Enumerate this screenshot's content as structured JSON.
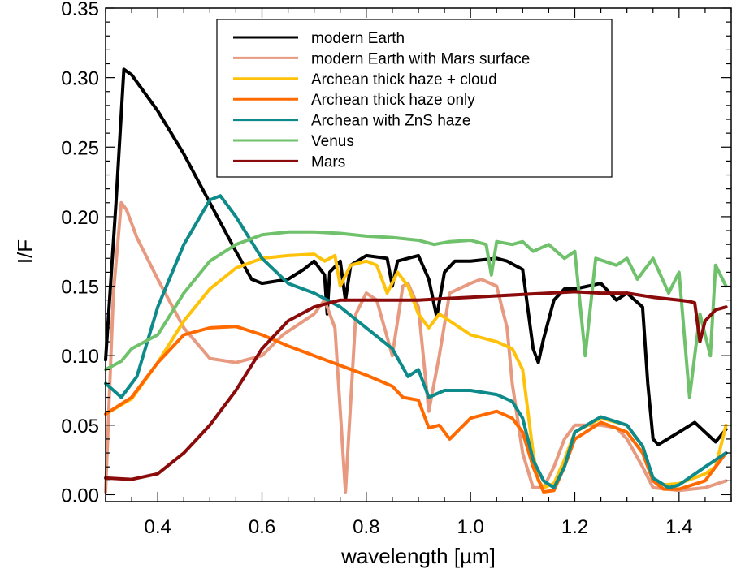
{
  "chart_data": {
    "type": "line",
    "title": "",
    "xlabel": "wavelength [µm]",
    "ylabel": "I/F",
    "xlim": [
      0.3,
      1.5
    ],
    "ylim": [
      -0.005,
      0.35
    ],
    "x_ticks": [
      0.4,
      0.6,
      0.8,
      1.0,
      1.2,
      1.4
    ],
    "x_tick_labels": [
      "0.4",
      "0.6",
      "0.8",
      "1.0",
      "1.2",
      "1.4"
    ],
    "y_ticks": [
      0.0,
      0.05,
      0.1,
      0.15,
      0.2,
      0.25,
      0.3,
      0.35
    ],
    "y_tick_labels": [
      "0.00",
      "0.05",
      "0.10",
      "0.15",
      "0.20",
      "0.25",
      "0.30",
      "0.35"
    ],
    "grid": false,
    "legend_position": "top-right",
    "series": [
      {
        "name": "modern Earth",
        "color": "#000000",
        "points": [
          [
            0.3,
            0.097
          ],
          [
            0.32,
            0.21
          ],
          [
            0.335,
            0.306
          ],
          [
            0.35,
            0.302
          ],
          [
            0.4,
            0.276
          ],
          [
            0.45,
            0.245
          ],
          [
            0.5,
            0.21
          ],
          [
            0.55,
            0.175
          ],
          [
            0.58,
            0.155
          ],
          [
            0.6,
            0.152
          ],
          [
            0.65,
            0.155
          ],
          [
            0.68,
            0.162
          ],
          [
            0.7,
            0.168
          ],
          [
            0.72,
            0.158
          ],
          [
            0.725,
            0.13
          ],
          [
            0.73,
            0.16
          ],
          [
            0.75,
            0.168
          ],
          [
            0.76,
            0.14
          ],
          [
            0.77,
            0.165
          ],
          [
            0.8,
            0.172
          ],
          [
            0.84,
            0.17
          ],
          [
            0.85,
            0.15
          ],
          [
            0.86,
            0.168
          ],
          [
            0.9,
            0.172
          ],
          [
            0.92,
            0.155
          ],
          [
            0.935,
            0.128
          ],
          [
            0.95,
            0.16
          ],
          [
            0.97,
            0.168
          ],
          [
            1.0,
            0.168
          ],
          [
            1.05,
            0.17
          ],
          [
            1.07,
            0.168
          ],
          [
            1.1,
            0.162
          ],
          [
            1.12,
            0.105
          ],
          [
            1.13,
            0.095
          ],
          [
            1.14,
            0.112
          ],
          [
            1.16,
            0.14
          ],
          [
            1.18,
            0.148
          ],
          [
            1.2,
            0.148
          ],
          [
            1.25,
            0.152
          ],
          [
            1.28,
            0.14
          ],
          [
            1.3,
            0.145
          ],
          [
            1.33,
            0.135
          ],
          [
            1.34,
            0.08
          ],
          [
            1.35,
            0.04
          ],
          [
            1.36,
            0.036
          ],
          [
            1.4,
            0.045
          ],
          [
            1.43,
            0.052
          ],
          [
            1.45,
            0.045
          ],
          [
            1.47,
            0.038
          ],
          [
            1.49,
            0.047
          ]
        ]
      },
      {
        "name": "modern Earth with Mars surface",
        "color": "#e89a80",
        "points": [
          [
            0.3,
            0.002
          ],
          [
            0.315,
            0.145
          ],
          [
            0.33,
            0.21
          ],
          [
            0.34,
            0.205
          ],
          [
            0.36,
            0.185
          ],
          [
            0.4,
            0.155
          ],
          [
            0.45,
            0.12
          ],
          [
            0.5,
            0.098
          ],
          [
            0.55,
            0.095
          ],
          [
            0.6,
            0.1
          ],
          [
            0.64,
            0.115
          ],
          [
            0.68,
            0.125
          ],
          [
            0.7,
            0.13
          ],
          [
            0.72,
            0.14
          ],
          [
            0.74,
            0.12
          ],
          [
            0.76,
            0.002
          ],
          [
            0.78,
            0.13
          ],
          [
            0.8,
            0.145
          ],
          [
            0.82,
            0.14
          ],
          [
            0.85,
            0.1
          ],
          [
            0.87,
            0.15
          ],
          [
            0.88,
            0.152
          ],
          [
            0.9,
            0.135
          ],
          [
            0.92,
            0.06
          ],
          [
            0.94,
            0.1
          ],
          [
            0.96,
            0.145
          ],
          [
            1.0,
            0.152
          ],
          [
            1.02,
            0.155
          ],
          [
            1.05,
            0.15
          ],
          [
            1.07,
            0.12
          ],
          [
            1.08,
            0.08
          ],
          [
            1.1,
            0.03
          ],
          [
            1.12,
            0.005
          ],
          [
            1.14,
            0.005
          ],
          [
            1.16,
            0.02
          ],
          [
            1.18,
            0.04
          ],
          [
            1.2,
            0.05
          ],
          [
            1.25,
            0.05
          ],
          [
            1.28,
            0.048
          ],
          [
            1.3,
            0.04
          ],
          [
            1.33,
            0.02
          ],
          [
            1.35,
            0.005
          ],
          [
            1.4,
            0.003
          ],
          [
            1.45,
            0.005
          ],
          [
            1.49,
            0.01
          ]
        ]
      },
      {
        "name": "Archean thick haze + cloud",
        "color": "#ffc20a",
        "points": [
          [
            0.3,
            0.058
          ],
          [
            0.35,
            0.069
          ],
          [
            0.4,
            0.095
          ],
          [
            0.45,
            0.125
          ],
          [
            0.5,
            0.148
          ],
          [
            0.55,
            0.163
          ],
          [
            0.6,
            0.17
          ],
          [
            0.65,
            0.172
          ],
          [
            0.7,
            0.173
          ],
          [
            0.72,
            0.168
          ],
          [
            0.74,
            0.172
          ],
          [
            0.75,
            0.15
          ],
          [
            0.77,
            0.165
          ],
          [
            0.8,
            0.168
          ],
          [
            0.82,
            0.165
          ],
          [
            0.84,
            0.145
          ],
          [
            0.86,
            0.16
          ],
          [
            0.88,
            0.15
          ],
          [
            0.9,
            0.13
          ],
          [
            0.92,
            0.12
          ],
          [
            0.94,
            0.13
          ],
          [
            0.96,
            0.125
          ],
          [
            1.0,
            0.115
          ],
          [
            1.05,
            0.11
          ],
          [
            1.08,
            0.105
          ],
          [
            1.1,
            0.09
          ],
          [
            1.12,
            0.03
          ],
          [
            1.13,
            0.01
          ],
          [
            1.14,
            0.005
          ],
          [
            1.16,
            0.008
          ],
          [
            1.18,
            0.025
          ],
          [
            1.2,
            0.045
          ],
          [
            1.25,
            0.055
          ],
          [
            1.3,
            0.05
          ],
          [
            1.33,
            0.035
          ],
          [
            1.35,
            0.01
          ],
          [
            1.37,
            0.007
          ],
          [
            1.4,
            0.008
          ],
          [
            1.45,
            0.015
          ],
          [
            1.47,
            0.02
          ],
          [
            1.49,
            0.05
          ]
        ]
      },
      {
        "name": "Archean thick haze only",
        "color": "#ff6a00",
        "points": [
          [
            0.3,
            0.058
          ],
          [
            0.35,
            0.07
          ],
          [
            0.4,
            0.095
          ],
          [
            0.45,
            0.115
          ],
          [
            0.5,
            0.12
          ],
          [
            0.55,
            0.121
          ],
          [
            0.6,
            0.115
          ],
          [
            0.65,
            0.107
          ],
          [
            0.7,
            0.1
          ],
          [
            0.75,
            0.093
          ],
          [
            0.8,
            0.086
          ],
          [
            0.85,
            0.078
          ],
          [
            0.87,
            0.07
          ],
          [
            0.9,
            0.068
          ],
          [
            0.92,
            0.048
          ],
          [
            0.94,
            0.05
          ],
          [
            0.96,
            0.04
          ],
          [
            1.0,
            0.055
          ],
          [
            1.05,
            0.06
          ],
          [
            1.08,
            0.055
          ],
          [
            1.1,
            0.045
          ],
          [
            1.12,
            0.02
          ],
          [
            1.14,
            0.002
          ],
          [
            1.16,
            0.003
          ],
          [
            1.18,
            0.02
          ],
          [
            1.2,
            0.04
          ],
          [
            1.25,
            0.052
          ],
          [
            1.3,
            0.045
          ],
          [
            1.33,
            0.03
          ],
          [
            1.35,
            0.01
          ],
          [
            1.37,
            0.004
          ],
          [
            1.4,
            0.004
          ],
          [
            1.45,
            0.01
          ],
          [
            1.49,
            0.03
          ]
        ]
      },
      {
        "name": "Archean with ZnS haze",
        "color": "#0e8a8a",
        "points": [
          [
            0.3,
            0.08
          ],
          [
            0.33,
            0.07
          ],
          [
            0.36,
            0.085
          ],
          [
            0.4,
            0.135
          ],
          [
            0.45,
            0.18
          ],
          [
            0.5,
            0.212
          ],
          [
            0.52,
            0.215
          ],
          [
            0.55,
            0.2
          ],
          [
            0.6,
            0.17
          ],
          [
            0.65,
            0.152
          ],
          [
            0.7,
            0.145
          ],
          [
            0.75,
            0.135
          ],
          [
            0.8,
            0.12
          ],
          [
            0.85,
            0.105
          ],
          [
            0.88,
            0.085
          ],
          [
            0.9,
            0.09
          ],
          [
            0.92,
            0.07
          ],
          [
            0.95,
            0.075
          ],
          [
            1.0,
            0.075
          ],
          [
            1.05,
            0.072
          ],
          [
            1.08,
            0.067
          ],
          [
            1.1,
            0.055
          ],
          [
            1.12,
            0.025
          ],
          [
            1.14,
            0.01
          ],
          [
            1.16,
            0.005
          ],
          [
            1.18,
            0.02
          ],
          [
            1.2,
            0.045
          ],
          [
            1.25,
            0.056
          ],
          [
            1.3,
            0.05
          ],
          [
            1.33,
            0.035
          ],
          [
            1.35,
            0.012
          ],
          [
            1.38,
            0.005
          ],
          [
            1.4,
            0.007
          ],
          [
            1.45,
            0.02
          ],
          [
            1.49,
            0.03
          ]
        ]
      },
      {
        "name": "Venus",
        "color": "#6fc16b",
        "points": [
          [
            0.3,
            0.09
          ],
          [
            0.33,
            0.096
          ],
          [
            0.35,
            0.105
          ],
          [
            0.4,
            0.115
          ],
          [
            0.45,
            0.145
          ],
          [
            0.5,
            0.168
          ],
          [
            0.55,
            0.18
          ],
          [
            0.6,
            0.187
          ],
          [
            0.65,
            0.189
          ],
          [
            0.7,
            0.189
          ],
          [
            0.75,
            0.188
          ],
          [
            0.8,
            0.186
          ],
          [
            0.85,
            0.185
          ],
          [
            0.9,
            0.183
          ],
          [
            0.93,
            0.18
          ],
          [
            0.96,
            0.182
          ],
          [
            1.0,
            0.183
          ],
          [
            1.03,
            0.18
          ],
          [
            1.04,
            0.158
          ],
          [
            1.05,
            0.182
          ],
          [
            1.08,
            0.18
          ],
          [
            1.1,
            0.182
          ],
          [
            1.12,
            0.175
          ],
          [
            1.15,
            0.18
          ],
          [
            1.18,
            0.17
          ],
          [
            1.2,
            0.175
          ],
          [
            1.22,
            0.1
          ],
          [
            1.24,
            0.17
          ],
          [
            1.28,
            0.165
          ],
          [
            1.3,
            0.17
          ],
          [
            1.32,
            0.155
          ],
          [
            1.35,
            0.17
          ],
          [
            1.38,
            0.145
          ],
          [
            1.4,
            0.16
          ],
          [
            1.42,
            0.07
          ],
          [
            1.44,
            0.13
          ],
          [
            1.46,
            0.1
          ],
          [
            1.47,
            0.165
          ],
          [
            1.49,
            0.15
          ]
        ]
      },
      {
        "name": "Mars",
        "color": "#8b0a0a",
        "points": [
          [
            0.3,
            0.012
          ],
          [
            0.35,
            0.011
          ],
          [
            0.4,
            0.015
          ],
          [
            0.45,
            0.03
          ],
          [
            0.5,
            0.05
          ],
          [
            0.55,
            0.075
          ],
          [
            0.6,
            0.105
          ],
          [
            0.65,
            0.125
          ],
          [
            0.7,
            0.135
          ],
          [
            0.75,
            0.14
          ],
          [
            0.8,
            0.14
          ],
          [
            0.85,
            0.14
          ],
          [
            0.9,
            0.14
          ],
          [
            0.95,
            0.141
          ],
          [
            1.0,
            0.142
          ],
          [
            1.05,
            0.143
          ],
          [
            1.1,
            0.144
          ],
          [
            1.15,
            0.145
          ],
          [
            1.2,
            0.146
          ],
          [
            1.25,
            0.145
          ],
          [
            1.3,
            0.145
          ],
          [
            1.35,
            0.142
          ],
          [
            1.4,
            0.14
          ],
          [
            1.42,
            0.139
          ],
          [
            1.43,
            0.138
          ],
          [
            1.44,
            0.11
          ],
          [
            1.45,
            0.125
          ],
          [
            1.47,
            0.133
          ],
          [
            1.49,
            0.135
          ]
        ]
      }
    ]
  }
}
